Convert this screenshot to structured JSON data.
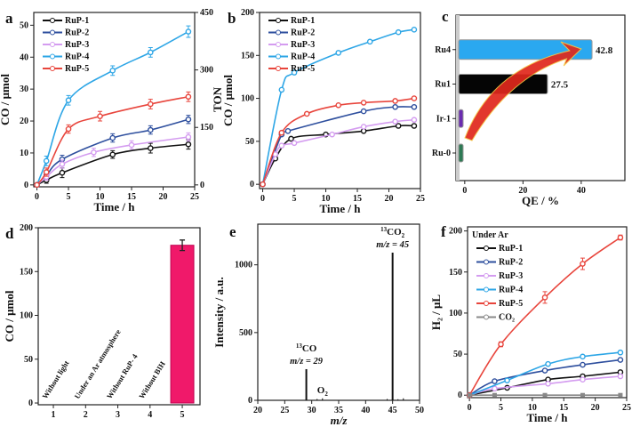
{
  "chart_data": [
    {
      "panel": "a",
      "type": "line",
      "xlabel": "Time / h",
      "ylabel": "CO / μmol",
      "y2label": "TON",
      "xlim": [
        -0.5,
        25
      ],
      "ylim": [
        -0.6,
        54
      ],
      "y2lim": [
        -5,
        450
      ],
      "xticks": [
        0,
        5,
        10,
        15,
        20,
        25
      ],
      "yticks": [
        0,
        10,
        20,
        30,
        40,
        50
      ],
      "y2ticks": [
        0,
        150,
        300,
        450
      ],
      "legend": "top-left",
      "series": [
        {
          "name": "RuP-1",
          "color": "#111111",
          "x": [
            0,
            1.5,
            4,
            12,
            18,
            24
          ],
          "y": [
            0,
            1.5,
            3.8,
            9.5,
            11.5,
            12.7
          ],
          "err": [
            0,
            1,
            1.5,
            1.2,
            1.5,
            1.5
          ]
        },
        {
          "name": "RuP-2",
          "color": "#2e4f9e",
          "x": [
            0,
            1.5,
            4,
            12,
            18,
            24
          ],
          "y": [
            0,
            3,
            8,
            14.7,
            17.2,
            20.5
          ],
          "err": [
            0,
            1,
            1.3,
            1.3,
            1.3,
            1.3
          ]
        },
        {
          "name": "RuP-3",
          "color": "#d49cf0",
          "x": [
            0,
            1.5,
            4,
            9,
            15,
            24
          ],
          "y": [
            0,
            2.5,
            6.5,
            10.2,
            12.5,
            15
          ],
          "err": [
            0,
            1,
            1.3,
            1.3,
            1.3,
            1.3
          ]
        },
        {
          "name": "RuP-4",
          "color": "#2ea6e6",
          "x": [
            0,
            1.5,
            5,
            12,
            18,
            24
          ],
          "y": [
            0,
            7.5,
            26.5,
            35.8,
            41.5,
            48
          ],
          "err": [
            0,
            1.5,
            1.5,
            1.5,
            1.5,
            1.8
          ]
        },
        {
          "name": "RuP-5",
          "color": "#e8453c",
          "x": [
            0,
            1.5,
            5,
            10,
            18,
            24
          ],
          "y": [
            0,
            4,
            17.5,
            21.5,
            25.3,
            27.6
          ],
          "err": [
            0,
            1.3,
            1.3,
            1.5,
            1.5,
            1.5
          ]
        }
      ]
    },
    {
      "panel": "b",
      "type": "line",
      "xlabel": "Time / h",
      "ylabel": "CO / μmol",
      "xlim": [
        -0.5,
        25
      ],
      "ylim": [
        -5,
        200
      ],
      "xticks": [
        0,
        5,
        10,
        15,
        20,
        25
      ],
      "yticks": [
        0,
        50,
        100,
        150,
        200
      ],
      "legend": "top-left",
      "series": [
        {
          "name": "RuP-1",
          "color": "#111111",
          "x": [
            0,
            2,
            4.5,
            10,
            16,
            21.5,
            24
          ],
          "y": [
            0,
            30,
            53,
            58,
            62,
            68,
            68
          ]
        },
        {
          "name": "RuP-2",
          "color": "#2e4f9e",
          "x": [
            0,
            3,
            4,
            16,
            21,
            24
          ],
          "y": [
            0,
            58,
            62,
            85,
            90,
            90
          ]
        },
        {
          "name": "RuP-3",
          "color": "#d49cf0",
          "x": [
            0,
            2,
            3,
            5,
            11,
            16,
            21,
            24
          ],
          "y": [
            0,
            35,
            45,
            48,
            58,
            67,
            73,
            75
          ]
        },
        {
          "name": "RuP-4",
          "color": "#2ea6e6",
          "x": [
            0,
            3,
            5,
            12,
            17,
            21.5,
            24
          ],
          "y": [
            0,
            110,
            130,
            153,
            166,
            177,
            180
          ]
        },
        {
          "name": "RuP-5",
          "color": "#e8453c",
          "x": [
            0,
            3,
            7,
            12,
            16,
            21,
            24
          ],
          "y": [
            0,
            60,
            82,
            92,
            95,
            97,
            100
          ]
        }
      ]
    },
    {
      "panel": "c",
      "type": "bar",
      "orientation": "horizontal",
      "xlabel": "QE / %",
      "xlim": [
        -3,
        55
      ],
      "xticks": [
        0,
        20,
        40
      ],
      "categories": [
        "Ru4",
        "Ru1",
        "Ir-1",
        "Ru-0"
      ],
      "values": [
        42.8,
        27.5,
        1.5,
        1.5
      ],
      "colors": [
        "#2aa8f0",
        "#050505",
        "#6a2bb0",
        "#2e7a55"
      ],
      "labels": [
        "42.8",
        "27.5",
        "",
        ""
      ]
    },
    {
      "panel": "d",
      "type": "bar",
      "ylabel": "CO / μmol",
      "xlim": [
        0.53,
        5.55
      ],
      "ylim": [
        -2,
        200
      ],
      "xticks": [
        1,
        2,
        3,
        4,
        5
      ],
      "yticks": [
        0,
        50,
        100,
        150,
        200
      ],
      "categories": [
        "1",
        "2",
        "3",
        "4",
        "5"
      ],
      "values": [
        0,
        0,
        0,
        0,
        180
      ],
      "err": [
        0,
        0,
        0,
        0,
        6
      ],
      "color": "#f0196a",
      "annotations": [
        "Without light",
        "Under an Ar atmosphere",
        "Without RuP- 4",
        "Without BIH"
      ]
    },
    {
      "panel": "e",
      "type": "bar",
      "xlabel": "m/z",
      "ylabel": "Intensity / a.u.",
      "xlim": [
        20,
        50
      ],
      "ylim": [
        0,
        1300
      ],
      "xticks": [
        20,
        25,
        30,
        35,
        40,
        45,
        50
      ],
      "yticks": [
        0,
        500,
        1000
      ],
      "x": [
        29,
        31,
        32,
        44,
        45,
        46,
        47
      ],
      "values": [
        230,
        10,
        15,
        10,
        1090,
        8,
        15
      ],
      "annotations": [
        {
          "sup": "13",
          "text": "CO",
          "sub": "",
          "line2": "m/z = 29",
          "at": 29
        },
        {
          "sup": "",
          "text": "O",
          "sub": "2",
          "line2": "",
          "at": 32
        },
        {
          "sup": "13",
          "text": "CO",
          "sub": "2",
          "line2": "m/z = 45",
          "at": 45
        }
      ]
    },
    {
      "panel": "f",
      "type": "line",
      "xlabel": "Time / h",
      "ylabel": "H₂ / μL",
      "xlim": [
        -0.3,
        25
      ],
      "ylim": [
        -3,
        205
      ],
      "xticks": [
        0,
        5,
        10,
        15,
        20,
        25
      ],
      "yticks": [
        0,
        50,
        100,
        150,
        200
      ],
      "legend_title": "Under Ar",
      "legend": "top-left",
      "series": [
        {
          "name": "RuP-1",
          "color": "#111111",
          "x": [
            0,
            6,
            12.5,
            18,
            24
          ],
          "y": [
            0,
            9,
            19,
            23,
            28
          ]
        },
        {
          "name": "RuP-2",
          "color": "#2e4f9e",
          "x": [
            0,
            4,
            12,
            18,
            24
          ],
          "y": [
            0,
            17,
            30,
            37,
            43
          ]
        },
        {
          "name": "RuP-3",
          "color": "#d49cf0",
          "x": [
            0,
            4,
            12.5,
            18,
            24
          ],
          "y": [
            0,
            8,
            14,
            19,
            23
          ]
        },
        {
          "name": "RuP-4",
          "color": "#2ea6e6",
          "x": [
            0,
            6,
            12.5,
            18,
            24
          ],
          "y": [
            0,
            18,
            38,
            47,
            52
          ]
        },
        {
          "name": "RuP-5",
          "color": "#e8453c",
          "x": [
            0,
            5,
            12,
            18,
            24
          ],
          "y": [
            0,
            62,
            119,
            160,
            192
          ],
          "err": [
            0,
            3,
            7,
            7,
            3
          ]
        },
        {
          "name": "CO₂",
          "color": "#888888",
          "marker": "square",
          "x": [
            0,
            4,
            12,
            18,
            24
          ],
          "y": [
            0,
            0,
            0,
            0,
            0
          ]
        }
      ]
    }
  ]
}
